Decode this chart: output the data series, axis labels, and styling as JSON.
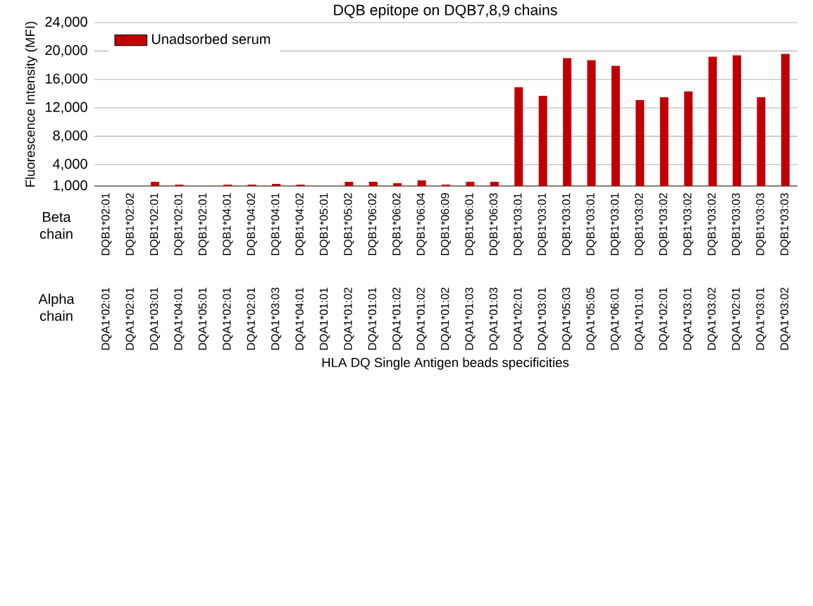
{
  "chart_data": {
    "type": "bar",
    "title": "DQB epitope on DQB7,8,9 chains",
    "xlabel": "HLA DQ Single Antigen beads specificities",
    "ylabel": "Fluorescence Intensity (MFI)",
    "categories": [
      "DQA1*02:01 DQB1*02:01",
      "DQA1*02:01 DQB1*02:02",
      "DQA1*03:01 DQB1*02:01",
      "DQA1*04:01 DQB1*02:01",
      "DQA1*05:01 DQB1*02:01",
      "DQA1*02:01 DQB1*04:01",
      "DQA1*02:01 DQB1*04:02",
      "DQA1*03:03 DQB1*04:01",
      "DQA1*04:01 DQB1*04:02",
      "DQA1*01:01 DQB1*05:01",
      "DQA1*01:02 DQB1*05:02",
      "DQA1*01:01 DQB1*06:02",
      "DQA1*01:02 DQB1*06:02",
      "DQA1*01:02 DQB1*06:04",
      "DQA1*01:02 DQB1*06:09",
      "DQA1*01:03 DQB1*06:01",
      "DQA1*01:03 DQB1*06:03",
      "DQA1*02:01 DQB1*03:01",
      "DQA1*03:01 DQB1*03:01",
      "DQA1*05:03 DQB1*03:01",
      "DQA1*05:05 DQB1*03:01",
      "DQA1*06:01 DQB1*03:01",
      "DQA1*01:01 DQB1*03:02",
      "DQA1*02:01 DQB1*03:02",
      "DQA1*03:01 DQB1*03:02",
      "DQA1*03:02 DQB1*03:02",
      "DQA1*02:01 DQB1*03:03",
      "DQA1*03:01 DQB1*03:03",
      "DQA1*03:02 DQB1*03:03"
    ],
    "series": [
      {
        "name": "Unadsorbed serum",
        "color": "#c00000",
        "values": [
          null,
          null,
          1600,
          1200,
          null,
          1200,
          1200,
          1300,
          1200,
          null,
          1600,
          1600,
          1400,
          1800,
          1200,
          1600,
          1600,
          14900,
          13700,
          19000,
          18700,
          17900,
          13100,
          13500,
          14300,
          19200,
          19400,
          13500,
          19600
        ]
      }
    ],
    "ylim": [
      1000,
      24000
    ],
    "yticks": [
      {
        "value": 1000,
        "label": "1,000"
      },
      {
        "value": 4000,
        "label": "4,000"
      },
      {
        "value": 8000,
        "label": "8,000"
      },
      {
        "value": 12000,
        "label": "12,000"
      },
      {
        "value": 16000,
        "label": "16,000"
      },
      {
        "value": 20000,
        "label": "20,000"
      },
      {
        "value": 24000,
        "label": "24,000"
      }
    ],
    "grid": "y",
    "legend": "top left",
    "annotations": [
      "Beta chain",
      "Alpha chain"
    ]
  }
}
